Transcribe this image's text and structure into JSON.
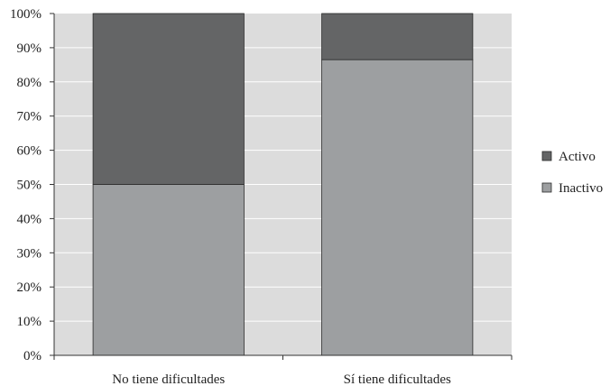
{
  "chart_data": {
    "type": "bar",
    "stacked": true,
    "percent": true,
    "categories": [
      "No tiene dificultades",
      "Sí tiene dificultades"
    ],
    "series": [
      {
        "name": "Inactivo",
        "values": [
          50,
          86.5
        ],
        "color": "#9d9fa1"
      },
      {
        "name": "Activo",
        "values": [
          50,
          13.5
        ],
        "color": "#646566"
      }
    ],
    "ylim": [
      0,
      100
    ],
    "yticks": [
      "0%",
      "10%",
      "20%",
      "30%",
      "40%",
      "50%",
      "60%",
      "70%",
      "80%",
      "90%",
      "100%"
    ],
    "legend": {
      "placement": "right",
      "order": [
        "Activo",
        "Inactivo"
      ]
    },
    "grid": true,
    "plot_background": "#dcdcdc",
    "grid_color": "#ffffff"
  }
}
